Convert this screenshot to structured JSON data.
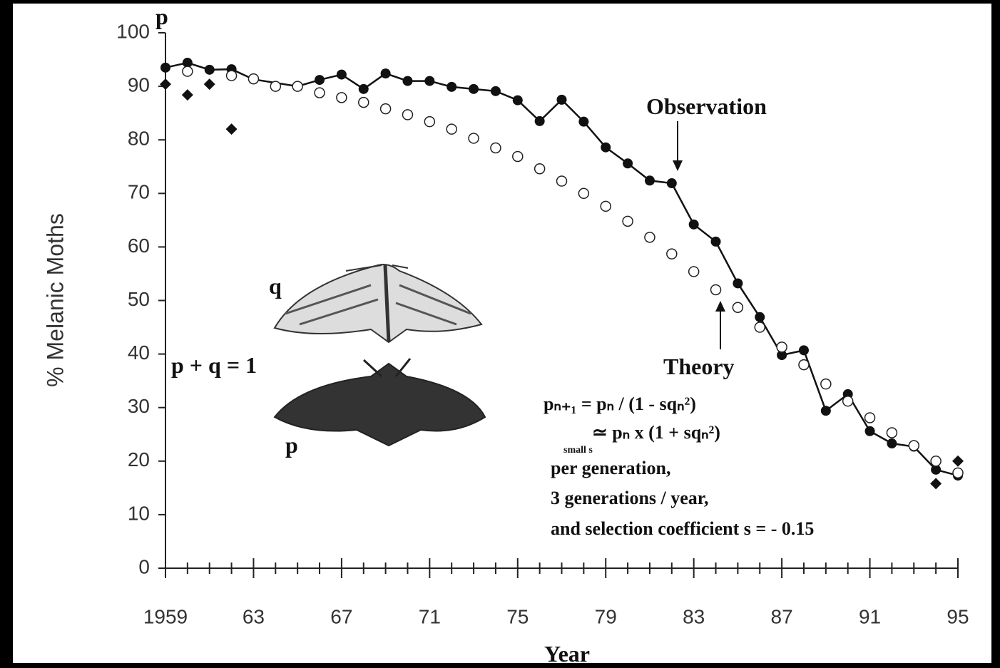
{
  "chart_data": {
    "type": "scatter",
    "y_label": "% Melanic Moths",
    "y_top_label": "p",
    "x_label": "Year",
    "xlim": [
      1959,
      1995
    ],
    "ylim": [
      0,
      100
    ],
    "xticks": [
      1959,
      {
        "value": 1963,
        "label": "63"
      },
      {
        "value": 1967,
        "label": "67"
      },
      {
        "value": 1971,
        "label": "71"
      },
      {
        "value": 1975,
        "label": "75"
      },
      {
        "value": 1979,
        "label": "79"
      },
      {
        "value": 1983,
        "label": "83"
      },
      {
        "value": 1987,
        "label": "87"
      },
      {
        "value": 1991,
        "label": "91"
      },
      {
        "value": 1995,
        "label": "95"
      }
    ],
    "xminorticks": [
      1960,
      1961,
      1962,
      1964,
      1965,
      1966,
      1968,
      1969,
      1970,
      1972,
      1973,
      1974,
      1976,
      1977,
      1978,
      1980,
      1981,
      1982,
      1984,
      1985,
      1986,
      1988,
      1989,
      1990,
      1992,
      1993,
      1994
    ],
    "yticks": [
      0,
      10,
      20,
      30,
      40,
      50,
      60,
      70,
      80,
      90,
      100
    ],
    "series": [
      {
        "marker": "filled-circle",
        "line": true,
        "color": "#111111",
        "x": [
          1959,
          1960,
          1961,
          1962,
          1963,
          1965,
          1966,
          1967,
          1968,
          1969,
          1970,
          1971,
          1972,
          1973,
          1974,
          1975,
          1976,
          1977,
          1978,
          1979,
          1980,
          1981,
          1982,
          1983,
          1984,
          1985,
          1986,
          1987,
          1988,
          1989,
          1990,
          1991,
          1992,
          1993,
          1994,
          1995
        ],
        "values": [
          93.5,
          94.4,
          93.1,
          93.2,
          91.3,
          90,
          91.2,
          92.2,
          89.5,
          92.4,
          91,
          91,
          89.9,
          89.5,
          89.1,
          87.4,
          83.5,
          87.5,
          83.4,
          78.6,
          75.6,
          72.4,
          71.9,
          64.2,
          61,
          53.2,
          46.9,
          39.8,
          40.7,
          29.4,
          32.5,
          25.6,
          23.3,
          22.7,
          18.4,
          17.3
        ]
      },
      {
        "marker": "open-circle",
        "line": false,
        "color": "#222222",
        "x": [
          1960,
          1962,
          1963,
          1964,
          1965,
          1966,
          1967,
          1968,
          1969,
          1970,
          1971,
          1972,
          1973,
          1974,
          1975,
          1976,
          1977,
          1978,
          1979,
          1980,
          1981,
          1982,
          1983,
          1984,
          1985,
          1986,
          1987,
          1988,
          1989,
          1990,
          1991,
          1992,
          1993,
          1994,
          1995
        ],
        "values": [
          92.8,
          92,
          91.4,
          90,
          90,
          88.8,
          87.9,
          87,
          85.8,
          84.7,
          83.4,
          82,
          80.3,
          78.5,
          76.9,
          74.6,
          72.3,
          70,
          67.6,
          64.8,
          61.8,
          58.7,
          55.4,
          52,
          48.7,
          45,
          41.3,
          38,
          34.4,
          31.2,
          28.1,
          25.3,
          22.9,
          20,
          17.8
        ]
      },
      {
        "marker": "diamond",
        "line": false,
        "color": "#111111",
        "x": [
          1959,
          1960,
          1961,
          1962,
          1994,
          1995
        ],
        "values": [
          90.4,
          88.4,
          90.4,
          82,
          15.8,
          20
        ]
      }
    ],
    "annotations": {
      "observation": "Observation",
      "theory": "Theory",
      "sum": "p + q = 1",
      "moth_q": "q",
      "moth_p": "p",
      "formula1": "pₙ₊₁ = pₙ / (1 - sqₙ²)",
      "formula2": "≃ pₙ x (1 + sqₙ²)",
      "formula2_sub": "small s",
      "text1": "per generation,",
      "text2": "3 generations / year,",
      "text3": "and selection coefficient s = - 0.15"
    }
  }
}
